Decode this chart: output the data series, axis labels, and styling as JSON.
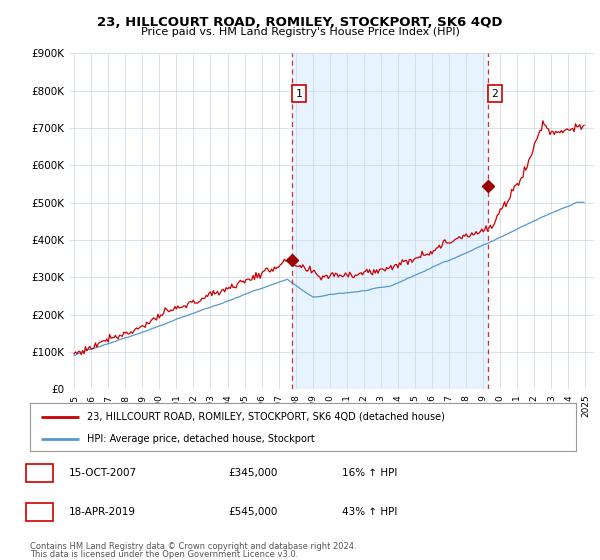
{
  "title": "23, HILLCOURT ROAD, ROMILEY, STOCKPORT, SK6 4QD",
  "subtitle": "Price paid vs. HM Land Registry's House Price Index (HPI)",
  "legend_line1": "23, HILLCOURT ROAD, ROMILEY, STOCKPORT, SK6 4QD (detached house)",
  "legend_line2": "HPI: Average price, detached house, Stockport",
  "sale1_label": "1",
  "sale1_date": "15-OCT-2007",
  "sale1_price": "£345,000",
  "sale1_hpi": "16% ↑ HPI",
  "sale2_label": "2",
  "sale2_date": "18-APR-2019",
  "sale2_price": "£545,000",
  "sale2_hpi": "43% ↑ HPI",
  "footer1": "Contains HM Land Registry data © Crown copyright and database right 2024.",
  "footer2": "This data is licensed under the Open Government Licence v3.0.",
  "background_color": "#ffffff",
  "grid_color": "#c8d8e8",
  "hpi_line_color": "#5599cc",
  "price_line_color": "#cc0000",
  "sale_marker_color": "#990000",
  "dashed_line_color": "#cc3333",
  "shading_color": "#ddeeff",
  "ylim": [
    0,
    900000
  ],
  "yticks": [
    0,
    100000,
    200000,
    300000,
    400000,
    500000,
    600000,
    700000,
    800000,
    900000
  ],
  "ytick_labels": [
    "£0",
    "£100K",
    "£200K",
    "£300K",
    "£400K",
    "£500K",
    "£600K",
    "£700K",
    "£800K",
    "£900K"
  ],
  "sale1_x": 2007.79,
  "sale1_y": 345000,
  "sale2_x": 2019.29,
  "sale2_y": 545000,
  "xlim_left": 1994.7,
  "xlim_right": 2025.5
}
